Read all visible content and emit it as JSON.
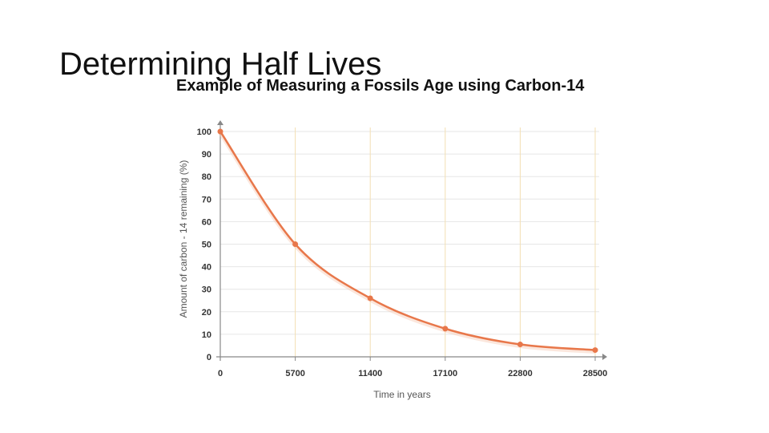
{
  "slide": {
    "title": "Determining Half Lives",
    "subtitle": "Example of Measuring a Fossils Age using Carbon-14"
  },
  "colors": {
    "curve": "#e8774a",
    "grid_vertical": "#f3dfb3",
    "grid_horizontal": "#e6e6e6",
    "axis": "#888888"
  },
  "chart_data": {
    "type": "line",
    "title": "",
    "xlabel": "Time in years",
    "ylabel": "Amount of carbon - 14 remaining   (%)",
    "xlim": [
      0,
      28500
    ],
    "ylim": [
      0,
      100
    ],
    "x_ticks": [
      0,
      5700,
      11400,
      17100,
      22800,
      28500
    ],
    "y_ticks": [
      0,
      10,
      20,
      30,
      40,
      50,
      60,
      70,
      80,
      90,
      100
    ],
    "grid": true,
    "series": [
      {
        "x": [
          0,
          5700,
          11400,
          17100,
          22800,
          28500
        ],
        "y": [
          100,
          50,
          26,
          12.5,
          5.5,
          3
        ],
        "markers": true,
        "smooth": true
      }
    ]
  }
}
